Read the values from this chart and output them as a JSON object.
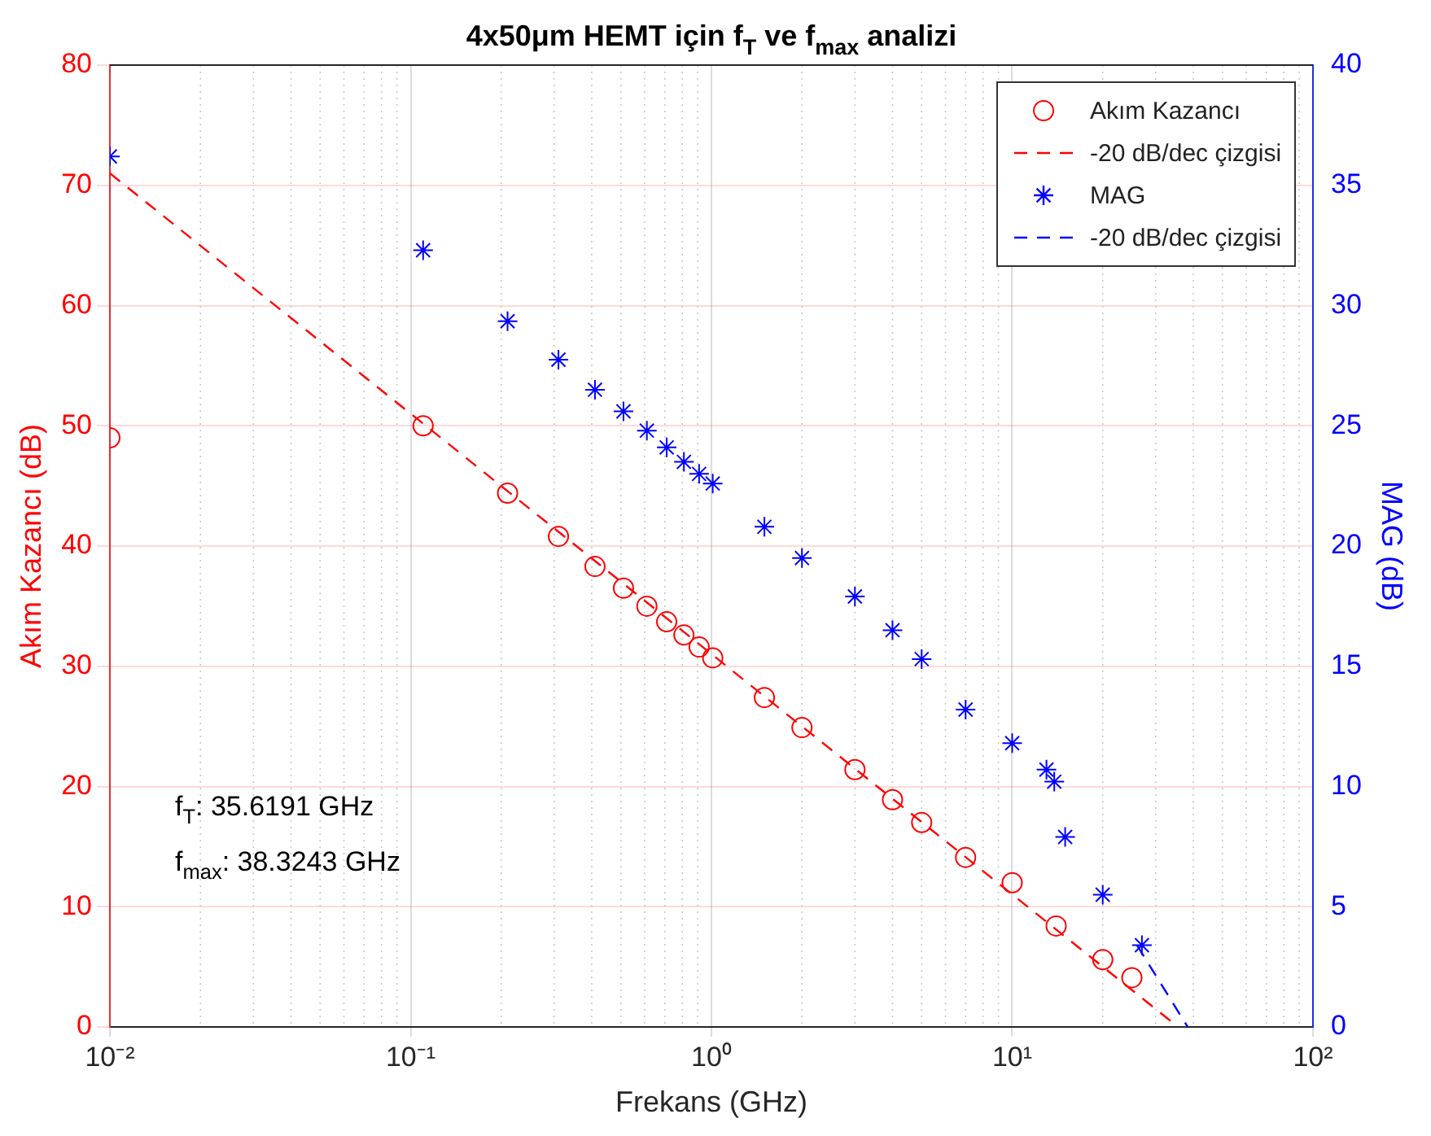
{
  "chart_data": {
    "type": "scatter",
    "title": "4x50μm HEMT için f$_{T}$ ve f$_{max}$ analizi",
    "xlabel": "Frekans (GHz)",
    "ylabel": "Akım Kazancı (dB)",
    "y2label": "MAG (dB)",
    "log": "x",
    "grid": true,
    "legend": "top right",
    "xlim": [
      0.01,
      100
    ],
    "xticks": [
      {
        "value": 0.01,
        "label": "10⁻²"
      },
      {
        "value": 0.1,
        "label": "10⁻¹"
      },
      {
        "value": 1,
        "label": "10⁰"
      },
      {
        "value": 10,
        "label": "10¹"
      },
      {
        "value": 100,
        "label": "10²"
      }
    ],
    "ylim": [
      0,
      80
    ],
    "yticks": [
      0,
      10,
      20,
      30,
      40,
      50,
      60,
      70,
      80
    ],
    "y2lim": [
      0,
      40
    ],
    "y2ticks": [
      0,
      5,
      10,
      15,
      20,
      25,
      30,
      35,
      40
    ],
    "annotations": [
      "f$_{T}$: 35.6191 GHz",
      "f$_{max}$: 38.3243 GHz"
    ],
    "series": [
      {
        "name": "Akım Kazancı",
        "color": "#ff0000",
        "marker": "circle",
        "axis": "y",
        "x": [
          0.01,
          0.11,
          0.21,
          0.31,
          0.41,
          0.51,
          0.61,
          0.71,
          0.81,
          0.91,
          1.01,
          1.5,
          2,
          3,
          4,
          5,
          7,
          10,
          14,
          20,
          25
        ],
        "values": [
          49,
          50.0,
          44.4,
          40.8,
          38.3,
          36.5,
          35.0,
          33.7,
          32.6,
          31.6,
          30.7,
          27.4,
          24.9,
          21.4,
          18.9,
          17.0,
          14.1,
          12.0,
          8.4,
          5.6,
          4.1
        ]
      },
      {
        "name": "-20 dB/dec çizgisi",
        "type": "line",
        "color": "#ff0000",
        "marker": "none",
        "line_style": "dashed",
        "axis": "y",
        "x": [
          0.01,
          35.6191
        ],
        "values": [
          71.0,
          0
        ]
      },
      {
        "name": "MAG",
        "color": "#0000ff",
        "marker": "cross",
        "axis": "y2",
        "x": [
          0.01,
          0.11,
          0.21,
          0.31,
          0.41,
          0.51,
          0.61,
          0.71,
          0.81,
          0.91,
          1.01,
          1.5,
          2,
          3,
          4,
          5,
          7,
          10,
          13,
          13.8,
          15,
          20,
          27
        ],
        "values": [
          36.2,
          32.3,
          29.35,
          27.75,
          26.5,
          25.6,
          24.8,
          24.1,
          23.5,
          23.0,
          22.6,
          20.8,
          19.5,
          17.9,
          16.5,
          15.3,
          13.2,
          11.8,
          10.7,
          10.2,
          7.9,
          5.5,
          3.4
        ]
      },
      {
        "name": "-20 dB/dec çizgisi",
        "type": "line",
        "color": "#0000ff",
        "marker": "none",
        "line_style": "dashed",
        "axis": "y2",
        "x": [
          26,
          38.3243
        ],
        "values": [
          3.4,
          0
        ]
      }
    ]
  }
}
